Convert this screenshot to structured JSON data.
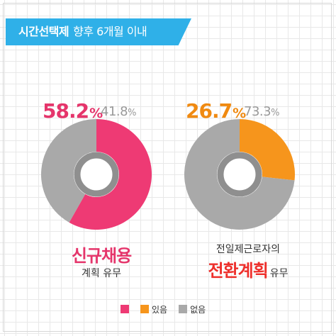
{
  "header": {
    "title": "시간선택제",
    "subtitle": "향후 6개월 이내"
  },
  "colors": {
    "pink": "#ee3a74",
    "orange": "#f6951c",
    "gray": "#a9a9a9",
    "hole_ring": "#8f8f8f"
  },
  "chart_data": [
    {
      "type": "pie",
      "title_line1": "신규채용",
      "title_line2": "계획 유무",
      "slices": [
        {
          "name": "있음",
          "value": 58.2,
          "color": "#ee3a74"
        },
        {
          "name": "없음",
          "value": 41.8,
          "color": "#a9a9a9"
        }
      ],
      "labels": {
        "yes_value": "58.2",
        "yes_unit": "%",
        "no_value": "41.8",
        "no_unit": "%"
      }
    },
    {
      "type": "pie",
      "title_line1": "전일제근로자의",
      "title_strong": "전환계획",
      "title_tail": "유무",
      "slices": [
        {
          "name": "있음",
          "value": 26.7,
          "color": "#f6951c"
        },
        {
          "name": "없음",
          "value": 73.3,
          "color": "#a9a9a9"
        }
      ],
      "labels": {
        "yes_value": "26.7",
        "yes_unit": "%",
        "no_value": "73.3",
        "no_unit": "%"
      }
    }
  ],
  "legend": {
    "yes_label": "있음",
    "no_label": "없음"
  }
}
